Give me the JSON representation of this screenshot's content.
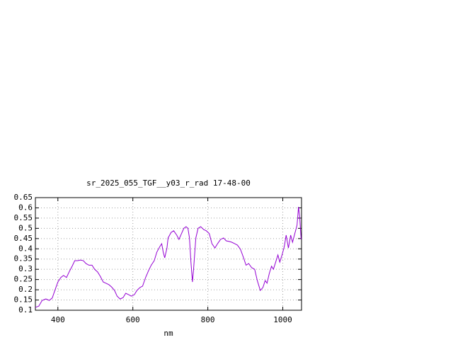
{
  "chart_data": {
    "type": "line",
    "title": "sr_2025_055_TGF__y03_r_rad 17-48-00",
    "x_label": "nm",
    "x": [
      340,
      349,
      358,
      368,
      377,
      385,
      392,
      400,
      408,
      415,
      423,
      430,
      438,
      445,
      453,
      460,
      468,
      475,
      483,
      491,
      498,
      506,
      513,
      521,
      528,
      536,
      543,
      551,
      558,
      566,
      574,
      581,
      589,
      596,
      604,
      611,
      619,
      626,
      634,
      642,
      649,
      657,
      664,
      672,
      677,
      681,
      685,
      691,
      694,
      702,
      709,
      717,
      723,
      728,
      736,
      742,
      747,
      751,
      755,
      759,
      762,
      768,
      774,
      781,
      789,
      796,
      804,
      811,
      819,
      826,
      834,
      842,
      849,
      857,
      864,
      872,
      879,
      887,
      894,
      902,
      909,
      917,
      925,
      932,
      940,
      947,
      953,
      958,
      964,
      970,
      975,
      981,
      987,
      992,
      998,
      1004,
      1009,
      1015,
      1021,
      1026,
      1032,
      1038,
      1042,
      1045,
      1049
    ],
    "series": [
      {
        "color": "#9400d3",
        "values": [
          0.114,
          0.12,
          0.148,
          0.155,
          0.148,
          0.16,
          0.197,
          0.238,
          0.26,
          0.27,
          0.26,
          0.287,
          0.315,
          0.342,
          0.342,
          0.345,
          0.342,
          0.328,
          0.32,
          0.32,
          0.3,
          0.287,
          0.266,
          0.238,
          0.232,
          0.225,
          0.214,
          0.197,
          0.169,
          0.155,
          0.162,
          0.183,
          0.176,
          0.169,
          0.176,
          0.197,
          0.211,
          0.218,
          0.26,
          0.294,
          0.32,
          0.342,
          0.384,
          0.411,
          0.425,
          0.384,
          0.356,
          0.404,
          0.453,
          0.48,
          0.488,
          0.467,
          0.446,
          0.467,
          0.5,
          0.508,
          0.5,
          0.453,
          0.335,
          0.238,
          0.3,
          0.453,
          0.5,
          0.508,
          0.494,
          0.488,
          0.474,
          0.425,
          0.404,
          0.425,
          0.446,
          0.453,
          0.439,
          0.436,
          0.432,
          0.425,
          0.418,
          0.398,
          0.363,
          0.32,
          0.328,
          0.308,
          0.3,
          0.245,
          0.197,
          0.211,
          0.245,
          0.232,
          0.28,
          0.315,
          0.3,
          0.335,
          0.37,
          0.335,
          0.37,
          0.411,
          0.467,
          0.404,
          0.467,
          0.432,
          0.474,
          0.515,
          0.605,
          0.557,
          0.446
        ]
      }
    ],
    "xlim": [
      340,
      1050
    ],
    "ylim": [
      0.1,
      0.65
    ],
    "xticks": [
      400,
      600,
      800,
      1000
    ],
    "yticks": [
      0.1,
      0.15,
      0.2,
      0.25,
      0.3,
      0.35,
      0.4,
      0.45,
      0.5,
      0.55,
      0.6,
      0.65
    ],
    "grid": true
  }
}
